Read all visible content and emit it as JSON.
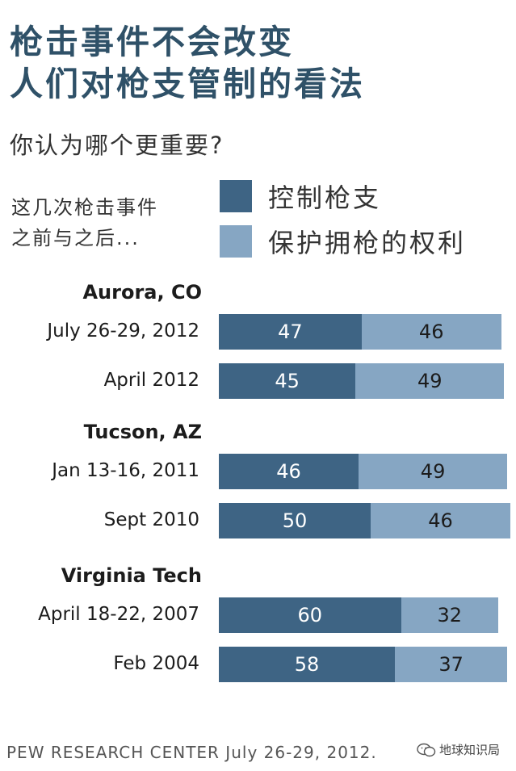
{
  "header": {
    "title_line1": "枪击事件不会改变",
    "title_line2": "人们对枪支管制的看法",
    "question": "你认为哪个更重要?",
    "timing_line1": "这几次枪击事件",
    "timing_line2": "之前与之后..."
  },
  "legend": [
    {
      "label": "控制枪支",
      "color": "#3e6484"
    },
    {
      "label": "保护拥枪的权利",
      "color": "#86a6c3"
    }
  ],
  "footer": {
    "source": "PEW RESEARCH  CENTER July 26-29, 2012.",
    "watermark": "地球知识局"
  },
  "chart_data": {
    "type": "bar",
    "stacked": true,
    "orientation": "horizontal",
    "groups": [
      {
        "label": "Aurora, CO",
        "rows": [
          {
            "label": "July 26-29, 2012",
            "control": 47,
            "rights": 46
          },
          {
            "label": "April 2012",
            "control": 45,
            "rights": 49
          }
        ]
      },
      {
        "label": "Tucson, AZ",
        "rows": [
          {
            "label": "Jan 13-16, 2011",
            "control": 46,
            "rights": 49
          },
          {
            "label": "Sept 2010",
            "control": 50,
            "rights": 46
          }
        ]
      },
      {
        "label": "Virginia Tech",
        "rows": [
          {
            "label": "April 18-22, 2007",
            "control": 60,
            "rights": 32
          },
          {
            "label": "Feb 2004",
            "control": 58,
            "rights": 37
          }
        ]
      }
    ],
    "series": [
      {
        "name": "控制枪支",
        "key": "control",
        "color": "#3e6484"
      },
      {
        "name": "保护拥枪的权利",
        "key": "rights",
        "color": "#86a6c3"
      }
    ],
    "xlim": [
      0,
      100
    ]
  }
}
